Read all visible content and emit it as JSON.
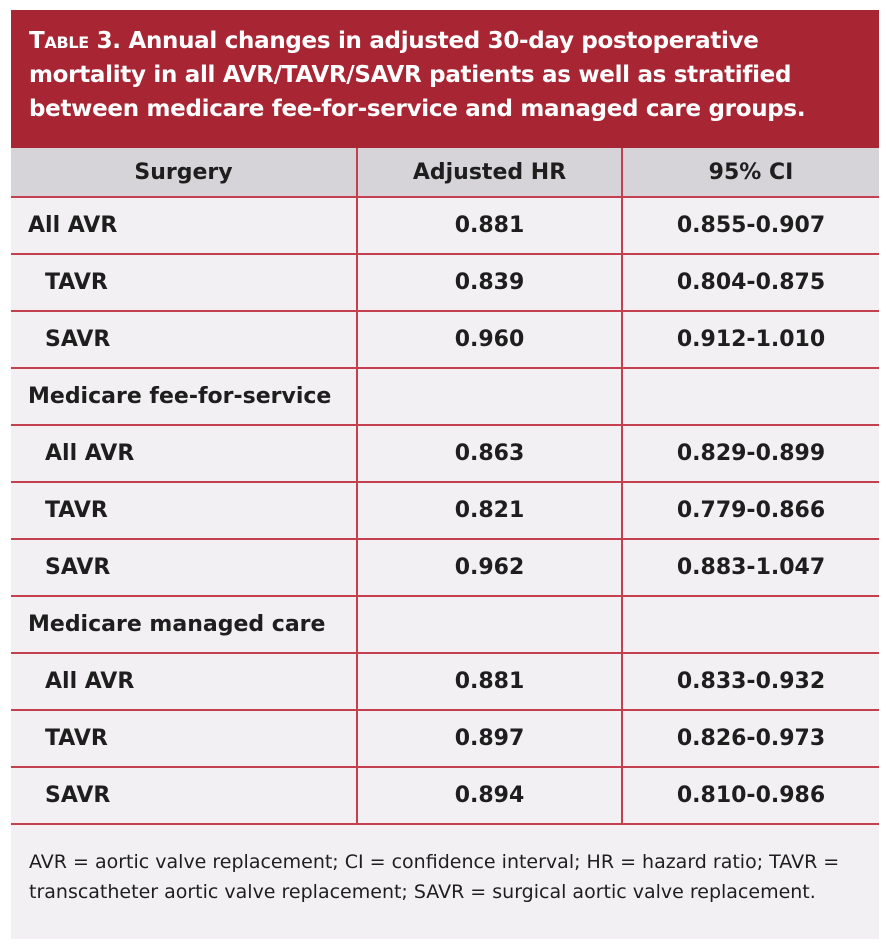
{
  "title": {
    "label": "Table 3.",
    "text": " Annual changes in adjusted 30-day postoperative mortality in all AVR/TAVR/SAVR patients as well as stratified between medicare fee-for-service and managed care groups."
  },
  "colors": {
    "header_bar": "#a82533",
    "rule": "#c4404e",
    "column_header_bg": "#d6d4d8",
    "body_bg": "#f2f0f2"
  },
  "columns": [
    "Surgery",
    "Adjusted HR",
    "95% CI"
  ],
  "rows": [
    {
      "name": "All AVR",
      "hr": "0.881",
      "ci": "0.855-0.907",
      "sub": false
    },
    {
      "name": "TAVR",
      "hr": "0.839",
      "ci": "0.804-0.875",
      "sub": true
    },
    {
      "name": "SAVR",
      "hr": "0.960",
      "ci": "0.912-1.010",
      "sub": true
    },
    {
      "name": "Medicare fee-for-service",
      "hr": "",
      "ci": "",
      "sub": false
    },
    {
      "name": "All AVR",
      "hr": "0.863",
      "ci": "0.829-0.899",
      "sub": true
    },
    {
      "name": "TAVR",
      "hr": "0.821",
      "ci": "0.779-0.866",
      "sub": true
    },
    {
      "name": "SAVR",
      "hr": "0.962",
      "ci": "0.883-1.047",
      "sub": true
    },
    {
      "name": "Medicare managed care",
      "hr": "",
      "ci": "",
      "sub": false
    },
    {
      "name": "All AVR",
      "hr": "0.881",
      "ci": "0.833-0.932",
      "sub": true
    },
    {
      "name": "TAVR",
      "hr": "0.897",
      "ci": "0.826-0.973",
      "sub": true
    },
    {
      "name": "SAVR",
      "hr": "0.894",
      "ci": "0.810-0.986",
      "sub": true
    }
  ],
  "footnote": "AVR = aortic valve replacement; CI = confidence interval; HR = hazard ratio; TAVR = transcatheter aortic valve replacement; SAVR = surgical aortic valve replacement."
}
